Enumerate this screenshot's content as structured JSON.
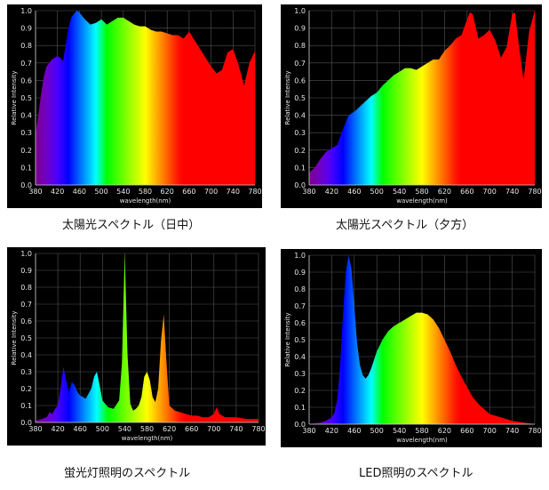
{
  "chart_data": [
    {
      "type": "area",
      "caption": "太陽光スペクトル（日中）",
      "xlabel": "wavelength(nm)",
      "ylabel": "Relative Intensity",
      "xlim": [
        380,
        780
      ],
      "ylim": [
        0,
        1.0
      ],
      "x_ticks": [
        "380",
        "420",
        "460",
        "500",
        "540",
        "580",
        "620",
        "660",
        "700",
        "740",
        "780"
      ],
      "y_ticks": [
        "0.0",
        "0.1",
        "0.2",
        "0.3",
        "0.4",
        "0.5",
        "0.6",
        "0.7",
        "0.8",
        "0.9",
        "1.0"
      ],
      "grid": true,
      "fill": "spectrum",
      "x": [
        380,
        385,
        390,
        395,
        400,
        405,
        410,
        415,
        420,
        425,
        430,
        435,
        440,
        445,
        450,
        455,
        460,
        465,
        470,
        480,
        490,
        500,
        510,
        520,
        530,
        540,
        550,
        560,
        570,
        580,
        590,
        600,
        610,
        620,
        630,
        640,
        650,
        660,
        670,
        680,
        690,
        700,
        710,
        720,
        730,
        740,
        750,
        760,
        770,
        780
      ],
      "y": [
        0.29,
        0.4,
        0.52,
        0.62,
        0.68,
        0.7,
        0.72,
        0.73,
        0.74,
        0.73,
        0.71,
        0.8,
        0.9,
        0.96,
        0.98,
        1.0,
        0.99,
        0.97,
        0.95,
        0.92,
        0.93,
        0.95,
        0.92,
        0.94,
        0.96,
        0.96,
        0.94,
        0.92,
        0.91,
        0.91,
        0.89,
        0.88,
        0.88,
        0.87,
        0.86,
        0.86,
        0.84,
        0.88,
        0.83,
        0.78,
        0.73,
        0.68,
        0.64,
        0.66,
        0.76,
        0.78,
        0.69,
        0.57,
        0.7,
        0.77
      ]
    },
    {
      "type": "area",
      "caption": "太陽光スペクトル（夕方）",
      "xlabel": "wavelength(nm)",
      "ylabel": "Relative Intensity",
      "xlim": [
        380,
        780
      ],
      "ylim": [
        0,
        1.0
      ],
      "x_ticks": [
        "380",
        "420",
        "460",
        "500",
        "540",
        "580",
        "620",
        "660",
        "700",
        "740",
        "780"
      ],
      "y_ticks": [
        "0.0",
        "0.1",
        "0.2",
        "0.3",
        "0.4",
        "0.5",
        "0.6",
        "0.7",
        "0.8",
        "0.9",
        "1.0"
      ],
      "grid": true,
      "fill": "spectrum",
      "x": [
        380,
        390,
        400,
        410,
        420,
        430,
        440,
        450,
        460,
        470,
        480,
        490,
        500,
        510,
        520,
        530,
        540,
        550,
        560,
        570,
        580,
        590,
        600,
        610,
        620,
        630,
        640,
        650,
        660,
        665,
        670,
        680,
        690,
        700,
        710,
        720,
        730,
        740,
        745,
        750,
        760,
        770,
        780
      ],
      "y": [
        0.07,
        0.1,
        0.15,
        0.19,
        0.21,
        0.23,
        0.32,
        0.4,
        0.42,
        0.45,
        0.48,
        0.51,
        0.53,
        0.57,
        0.6,
        0.63,
        0.65,
        0.67,
        0.67,
        0.66,
        0.68,
        0.7,
        0.72,
        0.72,
        0.77,
        0.8,
        0.84,
        0.86,
        0.95,
        0.99,
        0.98,
        0.84,
        0.86,
        0.89,
        0.83,
        0.73,
        0.79,
        0.98,
        0.99,
        0.85,
        0.6,
        0.88,
        1.0
      ]
    },
    {
      "type": "area",
      "caption": "蛍光灯照明のスペクトル",
      "xlabel": "wavelength(nm)",
      "ylabel": "Relative Intensity",
      "xlim": [
        380,
        780
      ],
      "ylim": [
        0,
        1.0
      ],
      "x_ticks": [
        "380",
        "420",
        "460",
        "500",
        "540",
        "580",
        "620",
        "660",
        "700",
        "740",
        "780"
      ],
      "y_ticks": [
        "0.0",
        "0.1",
        "0.2",
        "0.3",
        "0.4",
        "0.5",
        "0.6",
        "0.7",
        "0.8",
        "0.9",
        "1.0"
      ],
      "grid": true,
      "fill": "spectrum",
      "x": [
        380,
        390,
        400,
        405,
        410,
        415,
        420,
        425,
        430,
        435,
        440,
        445,
        450,
        455,
        460,
        470,
        480,
        485,
        490,
        495,
        500,
        510,
        520,
        530,
        535,
        540,
        545,
        550,
        555,
        560,
        565,
        570,
        575,
        580,
        585,
        590,
        595,
        600,
        605,
        610,
        615,
        620,
        630,
        640,
        650,
        660,
        670,
        680,
        690,
        700,
        705,
        710,
        720,
        740,
        760,
        780
      ],
      "y": [
        0.01,
        0.02,
        0.03,
        0.06,
        0.05,
        0.08,
        0.1,
        0.2,
        0.33,
        0.25,
        0.18,
        0.24,
        0.22,
        0.18,
        0.16,
        0.14,
        0.2,
        0.27,
        0.3,
        0.22,
        0.13,
        0.09,
        0.08,
        0.13,
        0.35,
        1.0,
        0.4,
        0.11,
        0.07,
        0.08,
        0.1,
        0.15,
        0.27,
        0.3,
        0.25,
        0.15,
        0.12,
        0.2,
        0.48,
        0.64,
        0.35,
        0.1,
        0.07,
        0.06,
        0.05,
        0.04,
        0.04,
        0.03,
        0.03,
        0.05,
        0.09,
        0.05,
        0.03,
        0.03,
        0.02,
        0.02
      ]
    },
    {
      "type": "area",
      "caption": "LED照明のスペクトル",
      "xlabel": "wavelength(nm)",
      "ylabel": "Relative Intensity",
      "xlim": [
        380,
        780
      ],
      "ylim": [
        0,
        1.0
      ],
      "x_ticks": [
        "380",
        "420",
        "460",
        "500",
        "540",
        "580",
        "620",
        "660",
        "700",
        "740",
        "780"
      ],
      "y_ticks": [
        "0.0",
        "0.1",
        "0.2",
        "0.3",
        "0.4",
        "0.5",
        "0.6",
        "0.7",
        "0.8",
        "0.9",
        "1.0"
      ],
      "grid": true,
      "fill": "spectrum",
      "x": [
        380,
        400,
        410,
        420,
        425,
        430,
        435,
        440,
        445,
        450,
        455,
        460,
        465,
        470,
        475,
        480,
        485,
        490,
        495,
        500,
        510,
        520,
        530,
        540,
        550,
        560,
        570,
        580,
        590,
        600,
        610,
        620,
        630,
        640,
        650,
        660,
        670,
        680,
        690,
        700,
        720,
        740,
        760,
        780
      ],
      "y": [
        0.0,
        0.01,
        0.02,
        0.04,
        0.07,
        0.15,
        0.35,
        0.65,
        0.9,
        1.0,
        0.92,
        0.7,
        0.48,
        0.35,
        0.29,
        0.27,
        0.29,
        0.33,
        0.38,
        0.43,
        0.5,
        0.55,
        0.58,
        0.6,
        0.62,
        0.64,
        0.66,
        0.66,
        0.65,
        0.62,
        0.57,
        0.5,
        0.43,
        0.35,
        0.28,
        0.22,
        0.16,
        0.12,
        0.09,
        0.06,
        0.04,
        0.02,
        0.01,
        0.0
      ]
    }
  ]
}
